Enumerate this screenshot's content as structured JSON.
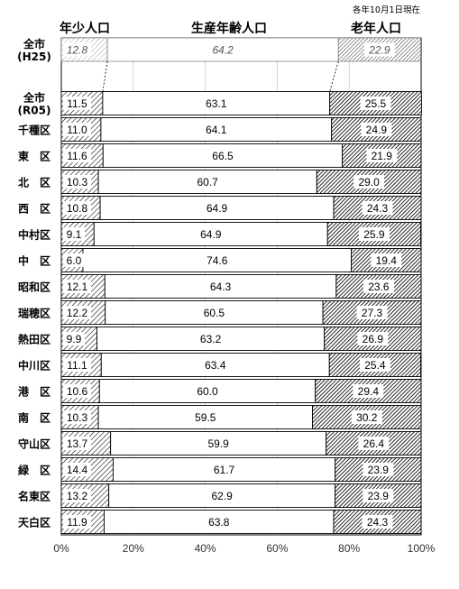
{
  "header": {
    "left": "年少人口",
    "center": "生産年齢人口",
    "right": "老年人口",
    "note": "各年10月1日現在"
  },
  "chart_data": {
    "type": "bar",
    "orientation": "horizontal",
    "stacked": "100%",
    "xlim": [
      0,
      100
    ],
    "x_ticks": [
      "0%",
      "20%",
      "40%",
      "60%",
      "80%",
      "100%"
    ],
    "series": [
      {
        "name": "年少人口",
        "pattern": "diagonal-hatch"
      },
      {
        "name": "生産年齢人口",
        "pattern": "white"
      },
      {
        "name": "老年人口",
        "pattern": "dark-hatch"
      }
    ],
    "reference": {
      "label_line1": "全市",
      "label_line2": "(H25)",
      "values": [
        12.8,
        64.2,
        22.9
      ]
    },
    "categories": [
      {
        "label_line1": "全市",
        "label_line2": "(R05)",
        "values": [
          11.5,
          63.1,
          25.5
        ]
      },
      {
        "label_line1": "千種区",
        "values": [
          11.0,
          64.1,
          24.9
        ]
      },
      {
        "label_line1": "東　区",
        "values": [
          11.6,
          66.5,
          21.9
        ]
      },
      {
        "label_line1": "北　区",
        "values": [
          10.3,
          60.7,
          29.0
        ]
      },
      {
        "label_line1": "西　区",
        "values": [
          10.8,
          64.9,
          24.3
        ]
      },
      {
        "label_line1": "中村区",
        "values": [
          9.1,
          64.9,
          25.9
        ]
      },
      {
        "label_line1": "中　区",
        "values": [
          6.0,
          74.6,
          19.4
        ]
      },
      {
        "label_line1": "昭和区",
        "values": [
          12.1,
          64.3,
          23.6
        ]
      },
      {
        "label_line1": "瑞穂区",
        "values": [
          12.2,
          60.5,
          27.3
        ]
      },
      {
        "label_line1": "熱田区",
        "values": [
          9.9,
          63.2,
          26.9
        ]
      },
      {
        "label_line1": "中川区",
        "values": [
          11.1,
          63.4,
          25.4
        ]
      },
      {
        "label_line1": "港　区",
        "values": [
          10.6,
          60.0,
          29.4
        ]
      },
      {
        "label_line1": "南　区",
        "values": [
          10.3,
          59.5,
          30.2
        ]
      },
      {
        "label_line1": "守山区",
        "values": [
          13.7,
          59.9,
          26.4
        ]
      },
      {
        "label_line1": "緑　区",
        "values": [
          14.4,
          61.7,
          23.9
        ]
      },
      {
        "label_line1": "名東区",
        "values": [
          13.2,
          62.9,
          23.9
        ]
      },
      {
        "label_line1": "天白区",
        "values": [
          11.9,
          63.8,
          24.3
        ]
      }
    ],
    "value_format": "one-decimal"
  }
}
